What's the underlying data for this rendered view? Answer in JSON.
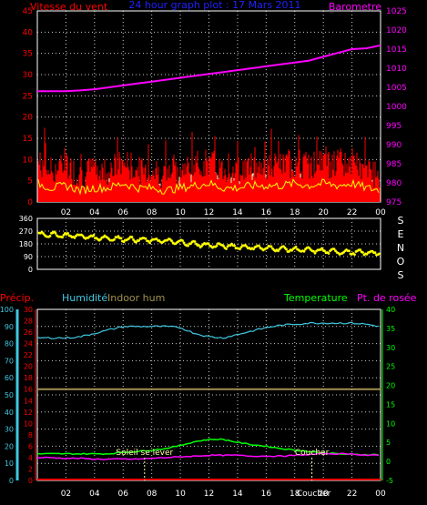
{
  "header": {
    "left_label": "Vitesse du vent",
    "title": "24 hour graph plot : 17 Mars 2011",
    "right_label": "Barometre"
  },
  "colors": {
    "background": "#000000",
    "frame": "#ffffff",
    "grid": "#ffffff",
    "wind": "#ff0000",
    "gust": "#c8ffc8",
    "wind_avg": "#ffff00",
    "pressure": "#ff00ff",
    "direction": "#ffff00",
    "precip": "#ff0000",
    "humidity": "#40c8e0",
    "indoor_hum": "#a09050",
    "temperature": "#00ff00",
    "dewpoint": "#ff00ff",
    "hour_labels": "#ffffff",
    "left_axis_wind": "#ff0000",
    "right_axis_pressure": "#ff00ff",
    "left_axis_precip": "#ff0000",
    "left_axis_hum": "#40c8e0",
    "right_axis_temp": "#00ff00",
    "title": "#2020ff",
    "left_label": "#ff0000",
    "right_label": "#ff00ff",
    "event_label": "#ffffaa"
  },
  "chart_data": [
    {
      "type": "line",
      "name": "wind-pressure",
      "x_ticks": [
        "02",
        "04",
        "06",
        "08",
        "10",
        "12",
        "14",
        "16",
        "18",
        "20",
        "22",
        "00"
      ],
      "y_left_ticks": [
        "0",
        "5",
        "10",
        "15",
        "20",
        "25",
        "30",
        "35",
        "40",
        "45"
      ],
      "y_right_ticks": [
        "975",
        "980",
        "985",
        "990",
        "995",
        "1000",
        "1005",
        "1010",
        "1015",
        "1020",
        "1025"
      ],
      "y_left_range": [
        0,
        45
      ],
      "y_right_range": [
        975,
        1025
      ],
      "series": [
        {
          "name": "Vitesse du vent",
          "axis": "left",
          "x": [
            0,
            1,
            2,
            3,
            4,
            5,
            6,
            7,
            8,
            9,
            10,
            11,
            12,
            13,
            14,
            15,
            16,
            17,
            18,
            19,
            20,
            21,
            22,
            23,
            24
          ],
          "y": [
            8,
            6,
            7,
            5,
            6,
            6,
            8,
            6,
            6,
            5,
            6,
            7,
            8,
            6,
            6,
            7,
            7,
            7,
            8,
            7,
            8,
            7,
            8,
            6,
            5
          ]
        },
        {
          "name": "Barometre",
          "axis": "right",
          "x": [
            0,
            1,
            2,
            3,
            4,
            5,
            6,
            7,
            8,
            9,
            10,
            11,
            12,
            13,
            14,
            15,
            16,
            17,
            18,
            19,
            20,
            21,
            22,
            23,
            24
          ],
          "y": [
            1004,
            1004,
            1004,
            1004.2,
            1004.5,
            1005,
            1005.5,
            1006,
            1006.5,
            1007,
            1007.5,
            1008,
            1008.5,
            1009,
            1009.5,
            1010,
            1010.5,
            1011,
            1011.5,
            1012,
            1013,
            1014,
            1015,
            1015.2,
            1016
          ]
        }
      ]
    },
    {
      "type": "scatter",
      "name": "wind-direction",
      "x_ticks": [
        "02",
        "04",
        "06",
        "08",
        "10",
        "12",
        "14",
        "16",
        "18",
        "20",
        "22",
        "00"
      ],
      "y_left_ticks": [
        "0",
        "90",
        "180",
        "270",
        "360"
      ],
      "y_range": [
        0,
        360
      ],
      "right_label_letters": [
        "S",
        "E",
        "N",
        "O",
        "S"
      ],
      "series": [
        {
          "name": "Direction",
          "x": [
            0,
            1,
            2,
            3,
            4,
            5,
            6,
            7,
            8,
            9,
            10,
            11,
            12,
            13,
            14,
            15,
            16,
            17,
            18,
            19,
            20,
            21,
            22,
            23,
            24
          ],
          "y": [
            250,
            245,
            240,
            235,
            225,
            220,
            215,
            210,
            205,
            200,
            190,
            180,
            170,
            165,
            160,
            155,
            150,
            145,
            140,
            135,
            130,
            125,
            120,
            118,
            115
          ]
        }
      ]
    },
    {
      "type": "line",
      "name": "temperature-humidity",
      "legend": [
        "Précip.",
        "Humidité",
        "Indoor hum",
        "Temperature",
        "Pt. de rosée"
      ],
      "x_ticks": [
        "02",
        "04",
        "06",
        "08",
        "10",
        "12",
        "14",
        "16",
        "18",
        "20",
        "22",
        "00"
      ],
      "y_precip_ticks": [
        "0",
        "2",
        "4",
        "6",
        "8",
        "10",
        "12",
        "14",
        "16",
        "18",
        "20",
        "22",
        "24",
        "26",
        "28",
        "30"
      ],
      "y_hum_ticks": [
        "0",
        "10",
        "20",
        "30",
        "40",
        "50",
        "60",
        "70",
        "80",
        "90",
        "100"
      ],
      "y_temp_ticks": [
        "-5",
        "0",
        "5",
        "10",
        "15",
        "20",
        "25",
        "30",
        "35",
        "40"
      ],
      "y_precip_range": [
        0,
        30
      ],
      "y_temp_range": [
        -5,
        40
      ],
      "series": [
        {
          "name": "Humidité",
          "axis": "precip",
          "x": [
            0,
            1,
            2,
            3,
            4,
            5,
            6,
            7,
            8,
            9,
            10,
            11,
            12,
            13,
            14,
            15,
            16,
            17,
            18,
            19,
            20,
            21,
            22,
            23,
            24
          ],
          "y": [
            25,
            25,
            25,
            25.2,
            25.8,
            26.4,
            27,
            27,
            27,
            27,
            26.8,
            25.8,
            25.2,
            25,
            25.6,
            26.2,
            26.8,
            27.2,
            27.4,
            27.6,
            27.6,
            27.6,
            27.6,
            27.4,
            27
          ]
        },
        {
          "name": "Indoor hum",
          "axis": "precip",
          "x": [
            0,
            24
          ],
          "y": [
            16,
            16
          ]
        },
        {
          "name": "Temperature",
          "axis": "temp",
          "x": [
            0,
            1,
            2,
            3,
            4,
            5,
            6,
            7,
            8,
            9,
            10,
            11,
            12,
            13,
            14,
            15,
            16,
            17,
            18,
            19,
            20,
            21,
            22,
            23,
            24
          ],
          "y": [
            2,
            2,
            2,
            2,
            2,
            2,
            2.4,
            2.6,
            3,
            3.4,
            4.2,
            5.2,
            5.8,
            5.8,
            5,
            4.4,
            4,
            3.4,
            3,
            2.6,
            2.2,
            2,
            1.8,
            1.8,
            1.8
          ]
        },
        {
          "name": "Pt. de rosée",
          "axis": "temp",
          "x": [
            0,
            1,
            2,
            3,
            4,
            5,
            6,
            7,
            8,
            9,
            10,
            11,
            12,
            13,
            14,
            15,
            16,
            17,
            18,
            19,
            20,
            21,
            22,
            23,
            24
          ],
          "y": [
            1,
            1,
            0.8,
            0.8,
            0.6,
            0.6,
            0.6,
            0.6,
            0.8,
            1,
            1.2,
            1.4,
            1.6,
            1.6,
            1.6,
            1.4,
            1.4,
            1.4,
            1.6,
            1.8,
            2,
            2,
            2,
            1.6,
            1.6
          ]
        },
        {
          "name": "Précip.",
          "axis": "precip",
          "x": [
            0,
            24
          ],
          "y": [
            0,
            0
          ]
        }
      ],
      "events": [
        {
          "label": "Soleil se lever",
          "x": 7.5
        },
        {
          "label": "Coucher",
          "x": 19.2
        }
      ],
      "x_tick_extra": "Coucher"
    }
  ]
}
